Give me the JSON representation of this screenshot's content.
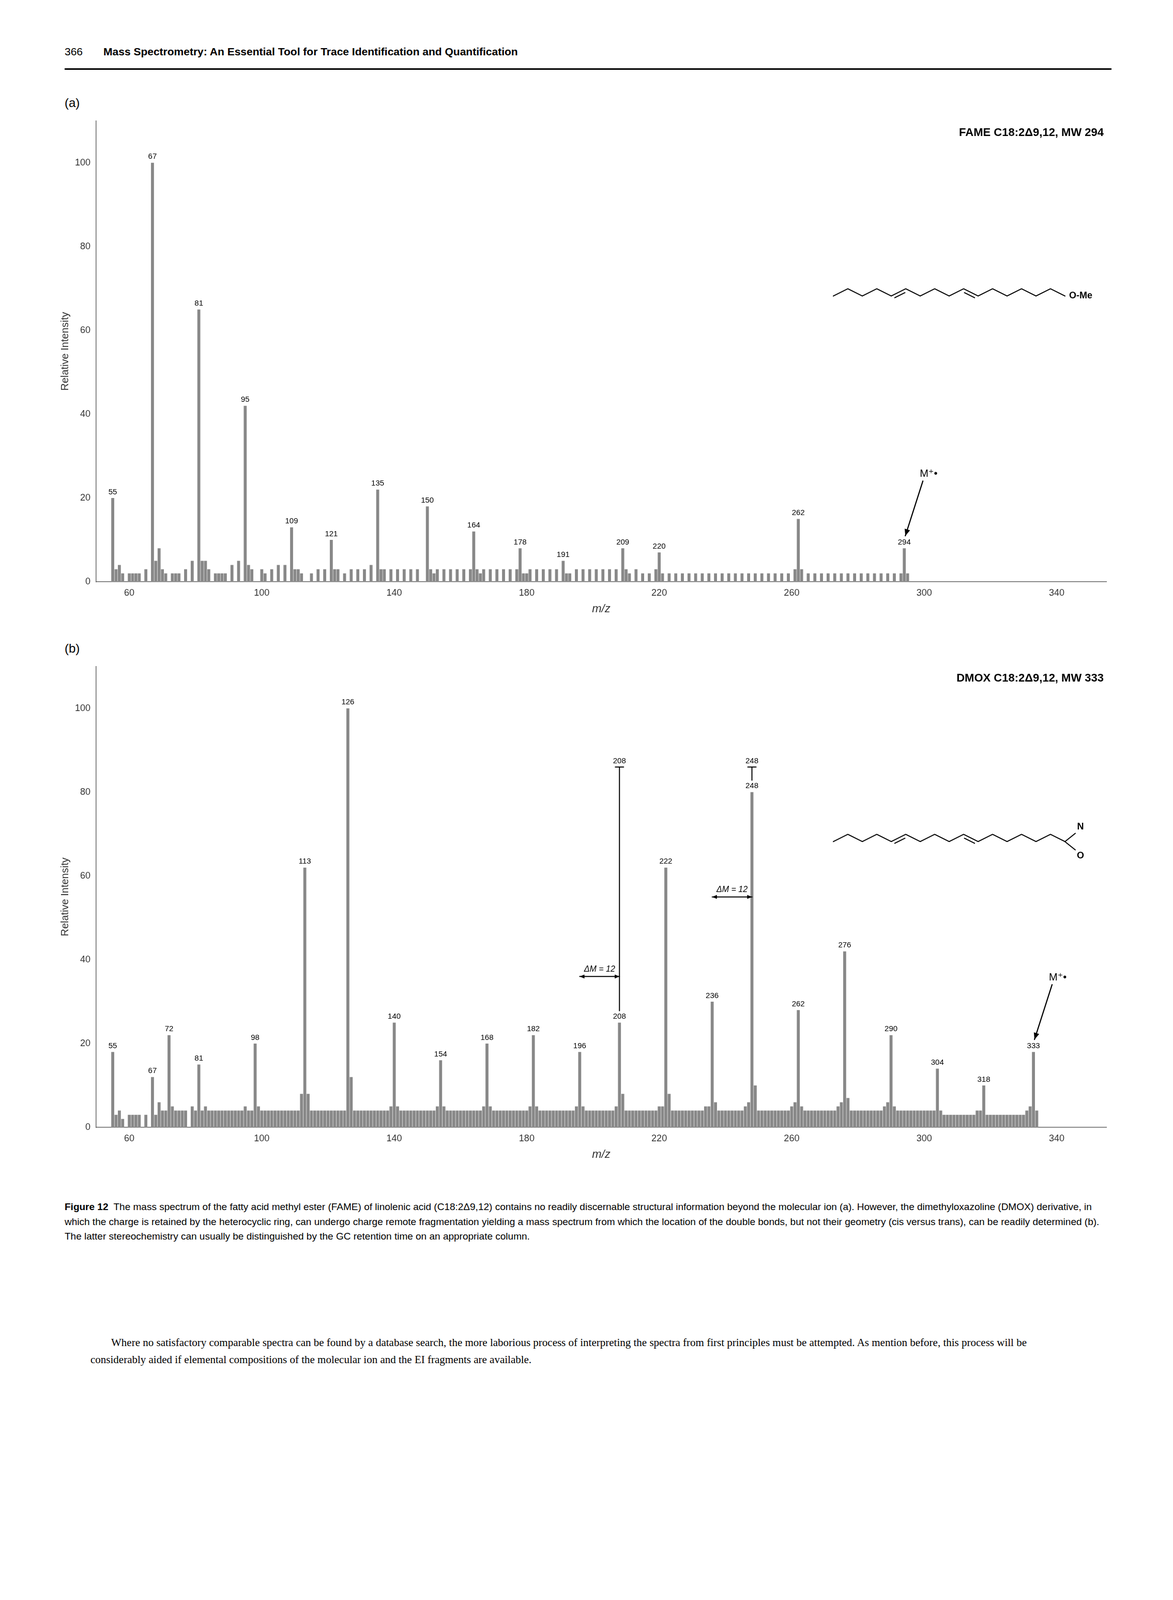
{
  "page_header": {
    "number": "366",
    "text": "Mass Spectrometry: An Essential Tool for Trace Identification and Quantification"
  },
  "chart_data": [
    {
      "type": "bar",
      "panel": "(a)",
      "title": "FAME C18:2Δ9,12, MW 294",
      "xlabel": "m/z",
      "ylabel": "Relative Intensity",
      "color": "#888888",
      "grid": false,
      "xlim": [
        50,
        355
      ],
      "xticks": [
        60,
        100,
        140,
        180,
        220,
        260,
        300,
        340
      ],
      "ylim": [
        0,
        110
      ],
      "yticks": [
        0,
        20,
        40,
        60,
        80,
        100
      ],
      "x": [
        55,
        56,
        57,
        58,
        60,
        61,
        62,
        63,
        65,
        67,
        68,
        69,
        70,
        71,
        73,
        74,
        75,
        77,
        79,
        81,
        82,
        83,
        84,
        86,
        87,
        88,
        89,
        91,
        93,
        95,
        96,
        97,
        100,
        101,
        103,
        105,
        107,
        109,
        110,
        111,
        112,
        115,
        117,
        119,
        121,
        122,
        123,
        125,
        127,
        129,
        131,
        133,
        135,
        136,
        137,
        139,
        141,
        143,
        145,
        147,
        150,
        151,
        152,
        153,
        155,
        157,
        159,
        161,
        163,
        164,
        165,
        166,
        167,
        169,
        171,
        173,
        175,
        177,
        178,
        179,
        180,
        181,
        183,
        185,
        187,
        189,
        191,
        192,
        193,
        195,
        197,
        199,
        201,
        203,
        205,
        207,
        209,
        210,
        211,
        213,
        215,
        217,
        219,
        220,
        221,
        223,
        225,
        227,
        229,
        231,
        233,
        235,
        237,
        239,
        241,
        243,
        245,
        247,
        249,
        251,
        253,
        255,
        257,
        259,
        261,
        262,
        263,
        265,
        267,
        269,
        271,
        273,
        275,
        277,
        279,
        281,
        283,
        285,
        287,
        289,
        291,
        293,
        294,
        295
      ],
      "values": [
        20,
        3,
        4,
        2,
        2,
        2,
        2,
        2,
        3,
        100,
        5,
        8,
        3,
        2,
        2,
        2,
        2,
        3,
        5,
        65,
        5,
        5,
        3,
        2,
        2,
        2,
        2,
        4,
        5,
        42,
        4,
        3,
        3,
        2,
        3,
        4,
        4,
        13,
        3,
        3,
        2,
        2,
        3,
        3,
        10,
        3,
        3,
        2,
        3,
        3,
        3,
        4,
        22,
        3,
        3,
        3,
        3,
        3,
        3,
        3,
        18,
        3,
        2,
        3,
        3,
        3,
        3,
        3,
        3,
        12,
        3,
        2,
        3,
        3,
        3,
        3,
        3,
        3,
        8,
        2,
        2,
        3,
        3,
        3,
        3,
        3,
        5,
        2,
        2,
        3,
        3,
        3,
        3,
        3,
        3,
        3,
        8,
        3,
        2,
        3,
        2,
        2,
        3,
        7,
        2,
        2,
        2,
        2,
        2,
        2,
        2,
        2,
        2,
        2,
        2,
        2,
        2,
        2,
        2,
        2,
        2,
        2,
        2,
        2,
        3,
        15,
        3,
        2,
        2,
        2,
        2,
        2,
        2,
        2,
        2,
        2,
        2,
        2,
        2,
        2,
        2,
        2,
        8,
        2
      ],
      "peak_labels": {
        "x": [
          55,
          67,
          81,
          95,
          109,
          121,
          135,
          150,
          164,
          178,
          191,
          209,
          220,
          262,
          294
        ],
        "values": [
          20,
          100,
          65,
          42,
          13,
          10,
          22,
          18,
          12,
          8,
          5,
          8,
          7,
          15,
          8
        ]
      },
      "structure_labels": [
        "O-Me"
      ],
      "ion_arrows": [
        {
          "text": "M⁺•",
          "x": 294,
          "y": 8
        }
      ],
      "spacing_arrows": [],
      "callouts": []
    },
    {
      "type": "bar",
      "panel": "(b)",
      "title": "DMOX C18:2Δ9,12, MW 333",
      "xlabel": "m/z",
      "ylabel": "Relative Intensity",
      "color": "#888888",
      "grid": false,
      "xlim": [
        50,
        355
      ],
      "xticks": [
        60,
        100,
        140,
        180,
        220,
        260,
        300,
        340
      ],
      "ylim": [
        0,
        110
      ],
      "yticks": [
        0,
        20,
        40,
        60,
        80,
        100
      ],
      "x": [
        55,
        56,
        57,
        58,
        60,
        61,
        62,
        63,
        65,
        67,
        68,
        69,
        70,
        71,
        72,
        73,
        74,
        75,
        76,
        77,
        79,
        80,
        81,
        82,
        83,
        84,
        85,
        86,
        87,
        88,
        89,
        90,
        91,
        92,
        93,
        94,
        95,
        96,
        97,
        98,
        99,
        100,
        101,
        102,
        103,
        104,
        105,
        106,
        107,
        108,
        109,
        110,
        111,
        112,
        113,
        114,
        115,
        116,
        117,
        118,
        119,
        120,
        121,
        122,
        123,
        124,
        125,
        126,
        127,
        128,
        129,
        130,
        131,
        132,
        133,
        134,
        135,
        136,
        137,
        138,
        139,
        140,
        141,
        142,
        143,
        144,
        145,
        146,
        147,
        148,
        149,
        150,
        151,
        152,
        153,
        154,
        155,
        156,
        157,
        158,
        159,
        160,
        161,
        162,
        163,
        164,
        165,
        166,
        167,
        168,
        169,
        170,
        171,
        172,
        173,
        174,
        175,
        176,
        177,
        178,
        179,
        180,
        181,
        182,
        183,
        184,
        185,
        186,
        187,
        188,
        189,
        190,
        191,
        192,
        193,
        194,
        195,
        196,
        197,
        198,
        199,
        200,
        201,
        202,
        203,
        204,
        205,
        206,
        207,
        208,
        209,
        210,
        211,
        212,
        213,
        214,
        215,
        216,
        217,
        218,
        219,
        220,
        221,
        222,
        223,
        224,
        225,
        226,
        227,
        228,
        229,
        230,
        231,
        232,
        233,
        234,
        235,
        236,
        237,
        238,
        239,
        240,
        241,
        242,
        243,
        244,
        245,
        246,
        247,
        248,
        249,
        250,
        251,
        252,
        253,
        254,
        255,
        256,
        257,
        258,
        259,
        260,
        261,
        262,
        263,
        264,
        265,
        266,
        267,
        268,
        269,
        270,
        271,
        272,
        273,
        274,
        275,
        276,
        277,
        278,
        279,
        280,
        281,
        282,
        283,
        284,
        285,
        286,
        287,
        288,
        289,
        290,
        291,
        292,
        293,
        294,
        295,
        296,
        297,
        298,
        299,
        300,
        301,
        302,
        303,
        304,
        305,
        306,
        307,
        308,
        309,
        310,
        311,
        312,
        313,
        314,
        315,
        316,
        317,
        318,
        319,
        320,
        321,
        322,
        323,
        324,
        325,
        326,
        327,
        328,
        329,
        330,
        331,
        332,
        333,
        334
      ],
      "values": [
        18,
        3,
        4,
        2,
        3,
        3,
        3,
        3,
        3,
        12,
        3,
        6,
        4,
        4,
        22,
        5,
        4,
        4,
        4,
        4,
        5,
        4,
        15,
        4,
        5,
        4,
        4,
        4,
        4,
        4,
        4,
        4,
        4,
        4,
        4,
        4,
        5,
        4,
        4,
        20,
        5,
        4,
        4,
        4,
        4,
        4,
        4,
        4,
        4,
        4,
        4,
        4,
        4,
        8,
        62,
        8,
        4,
        4,
        4,
        4,
        4,
        4,
        4,
        4,
        4,
        4,
        4,
        100,
        12,
        4,
        4,
        4,
        4,
        4,
        4,
        4,
        4,
        4,
        4,
        4,
        5,
        25,
        5,
        4,
        4,
        4,
        4,
        4,
        4,
        4,
        4,
        4,
        4,
        4,
        5,
        16,
        5,
        4,
        4,
        4,
        4,
        4,
        4,
        4,
        4,
        4,
        4,
        4,
        5,
        20,
        5,
        4,
        4,
        4,
        4,
        4,
        4,
        4,
        4,
        4,
        4,
        4,
        5,
        22,
        5,
        4,
        4,
        4,
        4,
        4,
        4,
        4,
        4,
        4,
        4,
        4,
        5,
        18,
        5,
        4,
        4,
        4,
        4,
        4,
        4,
        4,
        4,
        4,
        5,
        25,
        8,
        4,
        4,
        4,
        4,
        4,
        4,
        4,
        4,
        4,
        4,
        5,
        5,
        62,
        8,
        4,
        4,
        4,
        4,
        4,
        4,
        4,
        4,
        4,
        4,
        5,
        5,
        30,
        6,
        4,
        4,
        4,
        4,
        4,
        4,
        4,
        4,
        5,
        6,
        80,
        10,
        4,
        4,
        4,
        4,
        4,
        4,
        4,
        4,
        4,
        4,
        5,
        6,
        28,
        5,
        4,
        4,
        4,
        4,
        4,
        4,
        4,
        4,
        4,
        4,
        5,
        6,
        42,
        7,
        4,
        4,
        4,
        4,
        4,
        4,
        4,
        4,
        4,
        4,
        5,
        6,
        22,
        5,
        4,
        4,
        4,
        4,
        4,
        4,
        4,
        4,
        4,
        4,
        4,
        4,
        14,
        4,
        3,
        3,
        3,
        3,
        3,
        3,
        3,
        3,
        3,
        3,
        4,
        4,
        10,
        3,
        3,
        3,
        3,
        3,
        3,
        3,
        3,
        3,
        3,
        3,
        3,
        4,
        5,
        18,
        4
      ],
      "peak_labels": {
        "x": [
          55,
          67,
          72,
          81,
          98,
          113,
          126,
          140,
          154,
          168,
          182,
          196,
          208,
          222,
          236,
          248,
          262,
          276,
          290,
          304,
          318,
          333
        ],
        "values": [
          18,
          12,
          22,
          15,
          20,
          62,
          100,
          25,
          16,
          20,
          22,
          18,
          25,
          62,
          30,
          80,
          28,
          42,
          22,
          14,
          10,
          18
        ]
      },
      "structure_labels": [
        "N",
        "O"
      ],
      "ion_arrows": [
        {
          "text": "M⁺•",
          "x": 333,
          "y": 18
        }
      ],
      "spacing_arrows": [
        {
          "text": "ΔM = 12",
          "from": 196,
          "to": 208,
          "y": 36
        },
        {
          "text": "ΔM = 12",
          "from": 236,
          "to": 248,
          "y": 55
        }
      ],
      "callouts": [
        {
          "text": "248",
          "x": 248,
          "from": 80,
          "to": 86
        },
        {
          "text": "208",
          "x": 208,
          "from": 25,
          "to": 86
        }
      ]
    }
  ],
  "caption": {
    "label": "Figure 12",
    "text": "The mass spectrum of the fatty acid methyl ester (FAME) of linolenic acid (C18:2Δ9,12) contains no readily discernable structural information beyond the molecular ion (a). However, the dimethyloxazoline (DMOX) derivative, in which the charge is retained by the heterocyclic ring, can undergo charge remote fragmentation yielding a mass spectrum from which the location of the double bonds, but not their geometry (cis versus trans), can be readily determined (b). The latter stereochemistry can usually be distinguished by the GC retention time on an appropriate column."
  },
  "body": "Where no satisfactory comparable spectra can be found by a database search, the more laborious process of interpreting the spectra from first principles must be attempted. As mention before, this process will be considerably aided if elemental compositions of the molecular ion and the EI fragments are available."
}
